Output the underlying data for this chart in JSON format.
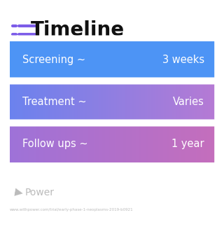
{
  "title": "Timeline",
  "background_color": "#ffffff",
  "icon_color": "#7c5ce8",
  "title_color": "#111111",
  "title_fontsize": 20,
  "rows": [
    {
      "label": "Screening ~",
      "value": "3 weeks",
      "color_left": "#4d94f5",
      "color_right": "#4d94f5"
    },
    {
      "label": "Treatment ~",
      "value": "Varies",
      "color_left": "#6b82ee",
      "color_right": "#b57ad4"
    },
    {
      "label": "Follow ups ~",
      "value": "1 year",
      "color_left": "#9e72d8",
      "color_right": "#c46ebc"
    }
  ],
  "watermark_text": "Power",
  "watermark_color": "#bbbbbb",
  "url_text": "www.withpower.com/trial/early-phase-1-neoplasms-2019-b0921",
  "url_color": "#bbbbbb",
  "label_fontsize": 10.5,
  "value_fontsize": 10.5
}
